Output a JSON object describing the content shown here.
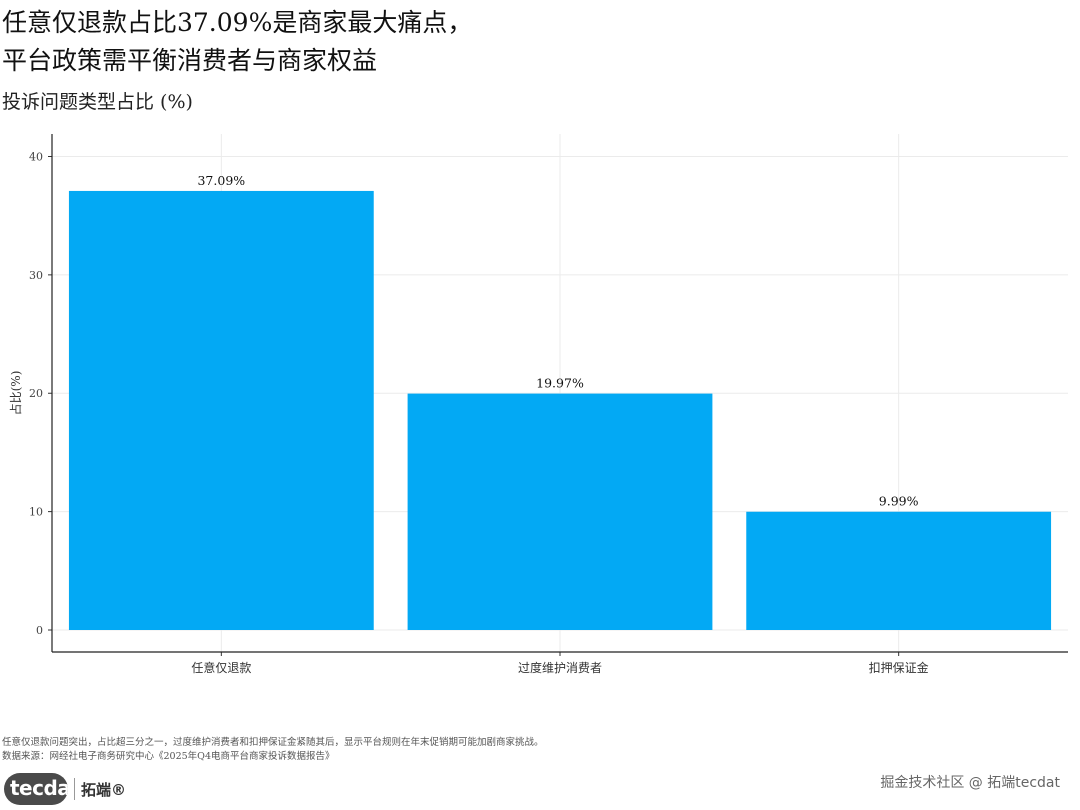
{
  "header": {
    "title": "任意仅退款占比37.09%是商家最大痛点，\n平台政策需平衡消费者与商家权益",
    "subtitle": "投诉问题类型占比 (%)"
  },
  "chart_data": {
    "type": "bar",
    "categories": [
      "任意仅退款",
      "过度维护消费者",
      "扣押保证金"
    ],
    "values": [
      37.09,
      19.97,
      9.99
    ],
    "data_labels": [
      "37.09%",
      "19.97%",
      "9.99%"
    ],
    "xlabel": "",
    "ylabel": "占比(%)",
    "ylim": [
      0,
      41.9
    ],
    "yticks": [
      0,
      10,
      20,
      30,
      40
    ],
    "grid": true,
    "legend": "none",
    "bar_color": "#03A9F4"
  },
  "caption": {
    "note": "任意仅退款问题突出，占比超三分之一，过度维护消费者和扣押保证金紧随其后，显示平台规则在年末促销期可能加剧商家挑战。",
    "source": "数据来源：网经社电子商务研究中心《2025年Q4电商平台商家投诉数据报告》"
  },
  "footer": {
    "logo_text": "tecdat",
    "logo_cn": "拓端®",
    "watermark": "掘金技术社区 @ 拓端tecdat"
  }
}
